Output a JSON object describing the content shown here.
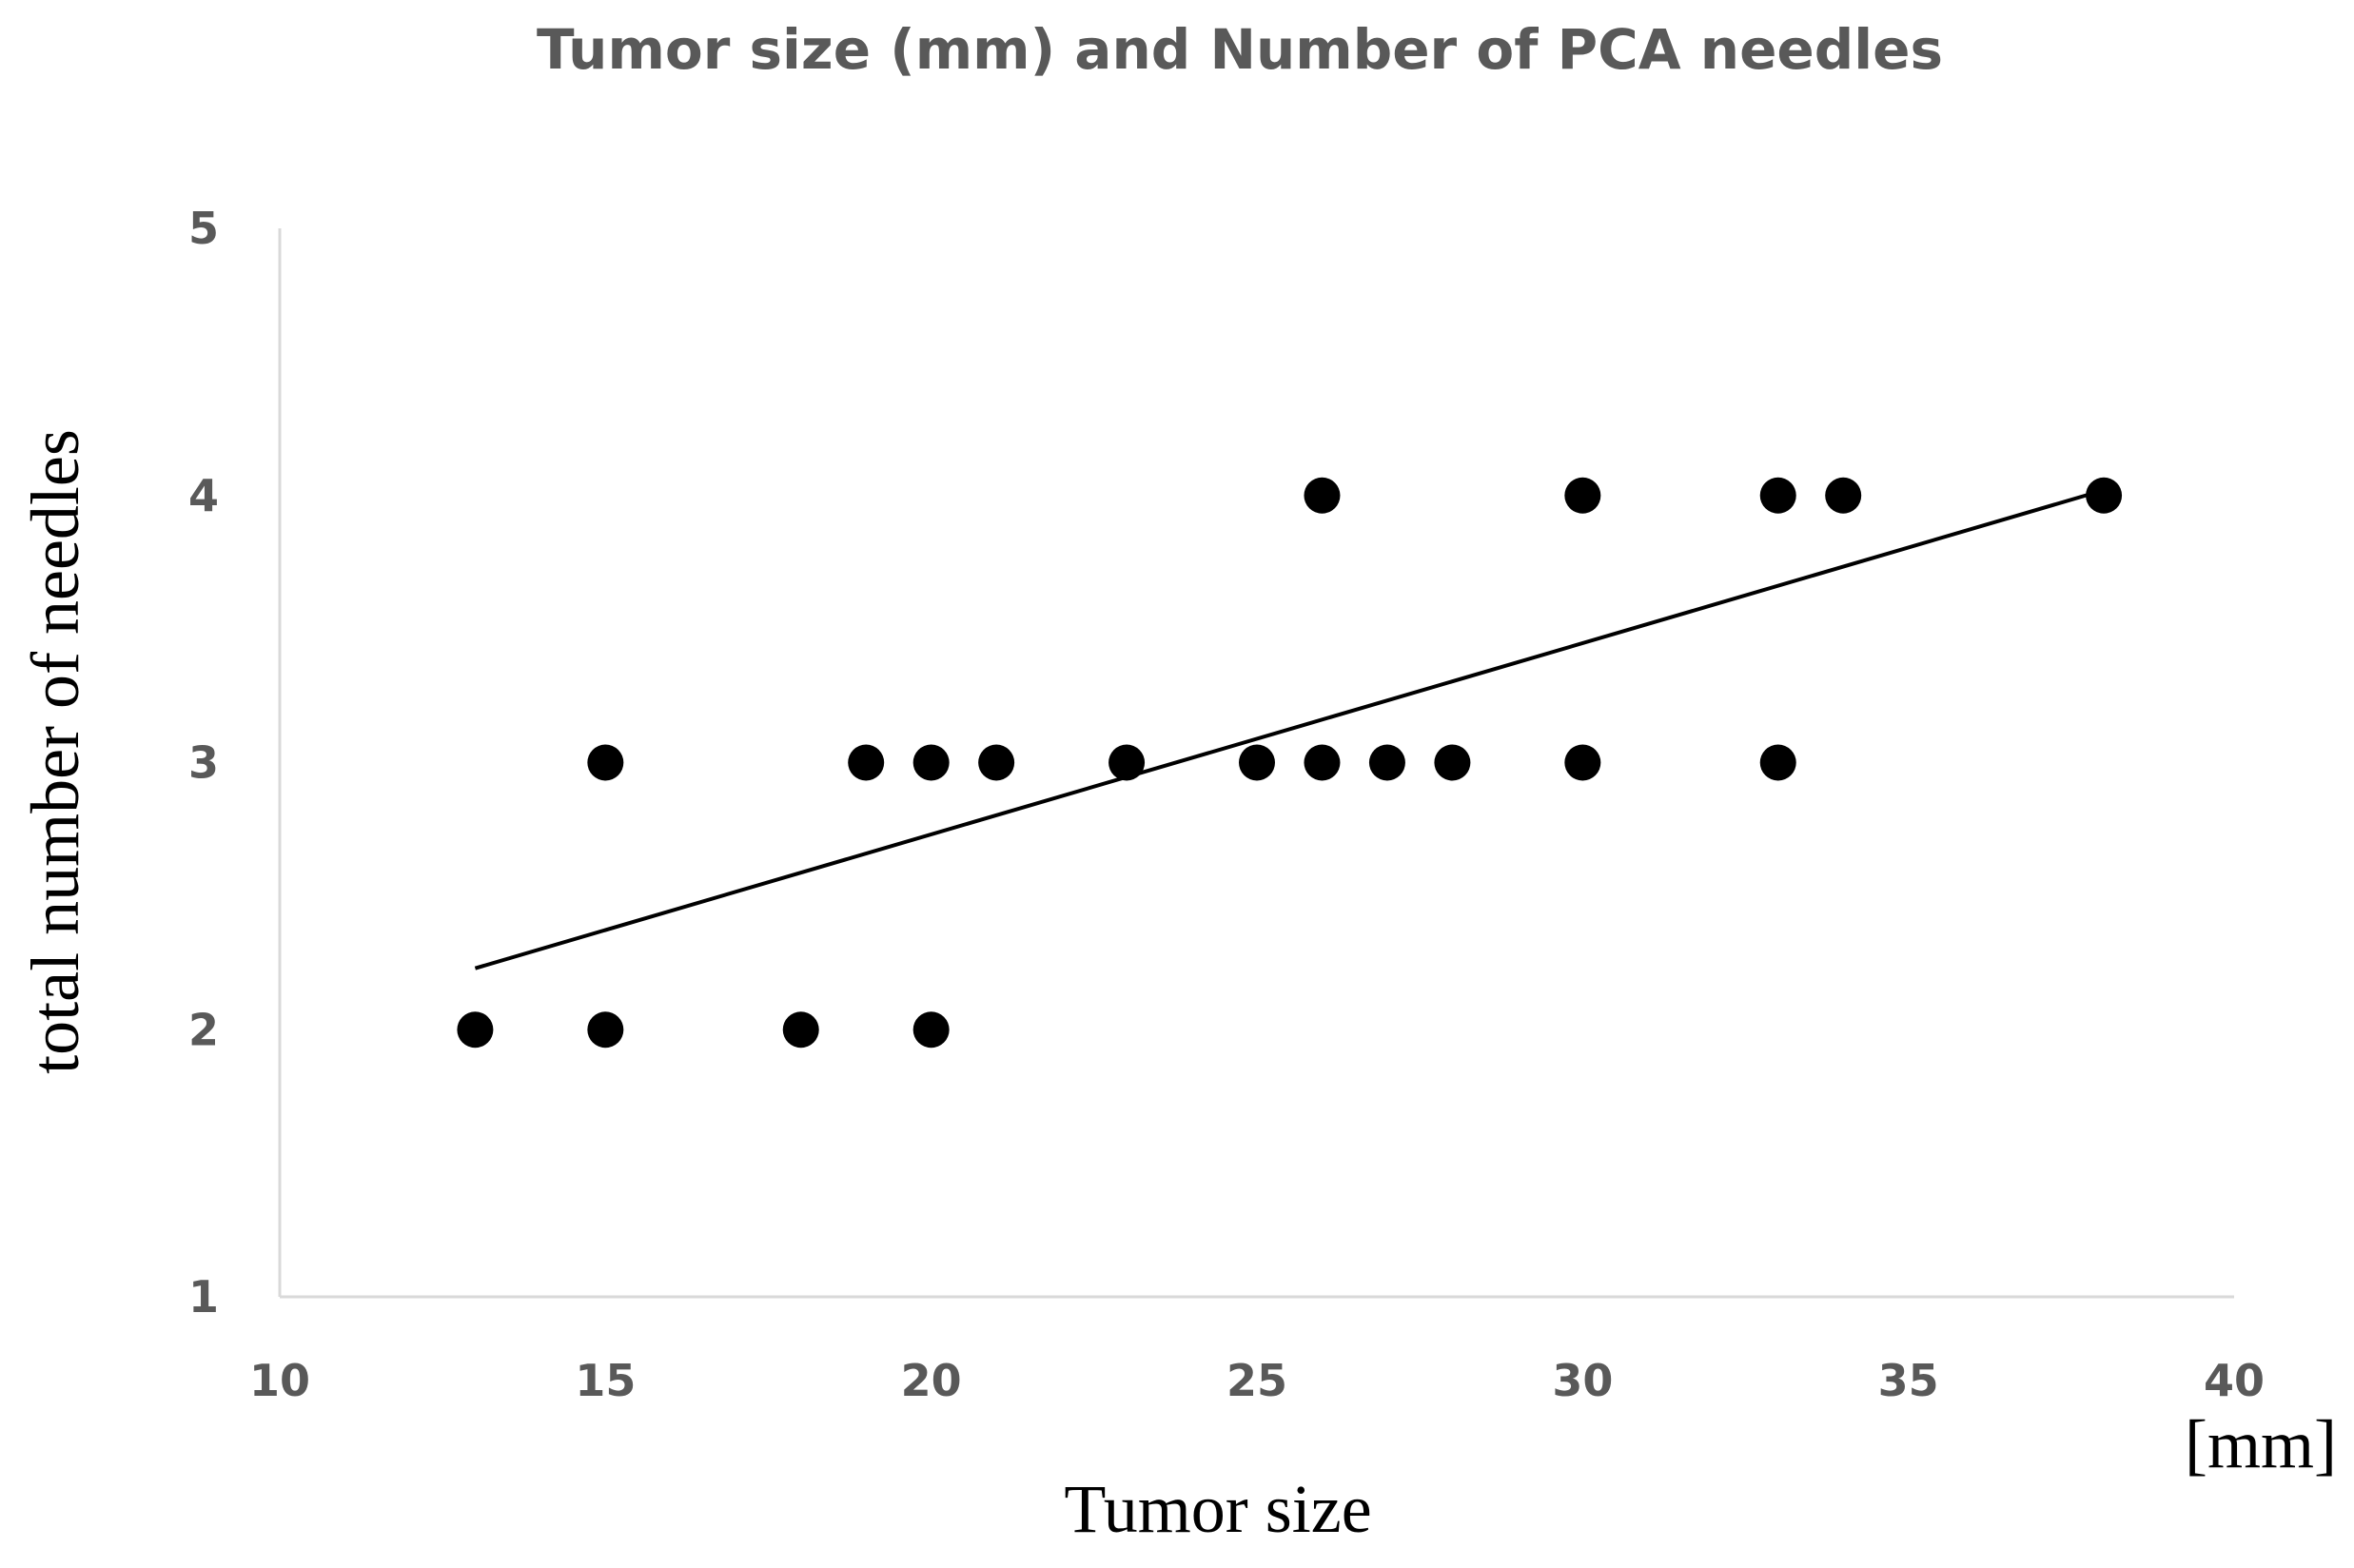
{
  "chart_data": {
    "type": "scatter",
    "title": "Tumor size (mm) and Number of PCA needles",
    "xlabel": "Tumor size",
    "xunit": "[mm]",
    "ylabel": "total number of needles",
    "xlim": [
      10,
      40
    ],
    "ylim": [
      1,
      5
    ],
    "xticks": [
      "10",
      "15",
      "20",
      "25",
      "30",
      "35",
      "40"
    ],
    "yticks": [
      "1",
      "2",
      "3",
      "4",
      "5"
    ],
    "grid": false,
    "colors": {
      "points": "#000000",
      "trendline": "#000000",
      "axis": "#d9d9d9",
      "text": "#595959"
    },
    "series": [
      {
        "name": "needles",
        "points": [
          {
            "x": 13,
            "y": 2
          },
          {
            "x": 15,
            "y": 2
          },
          {
            "x": 18,
            "y": 2
          },
          {
            "x": 20,
            "y": 2
          },
          {
            "x": 15,
            "y": 3
          },
          {
            "x": 19,
            "y": 3
          },
          {
            "x": 20,
            "y": 3
          },
          {
            "x": 21,
            "y": 3
          },
          {
            "x": 23,
            "y": 3
          },
          {
            "x": 25,
            "y": 3
          },
          {
            "x": 26,
            "y": 3
          },
          {
            "x": 27,
            "y": 3
          },
          {
            "x": 28,
            "y": 3
          },
          {
            "x": 30,
            "y": 3
          },
          {
            "x": 33,
            "y": 3
          },
          {
            "x": 26,
            "y": 4
          },
          {
            "x": 30,
            "y": 4
          },
          {
            "x": 33,
            "y": 4
          },
          {
            "x": 34,
            "y": 4
          },
          {
            "x": 38,
            "y": 4
          }
        ]
      }
    ],
    "trendline": {
      "type": "linear",
      "x": [
        13,
        38
      ],
      "y": [
        2.23,
        4.02
      ]
    }
  }
}
